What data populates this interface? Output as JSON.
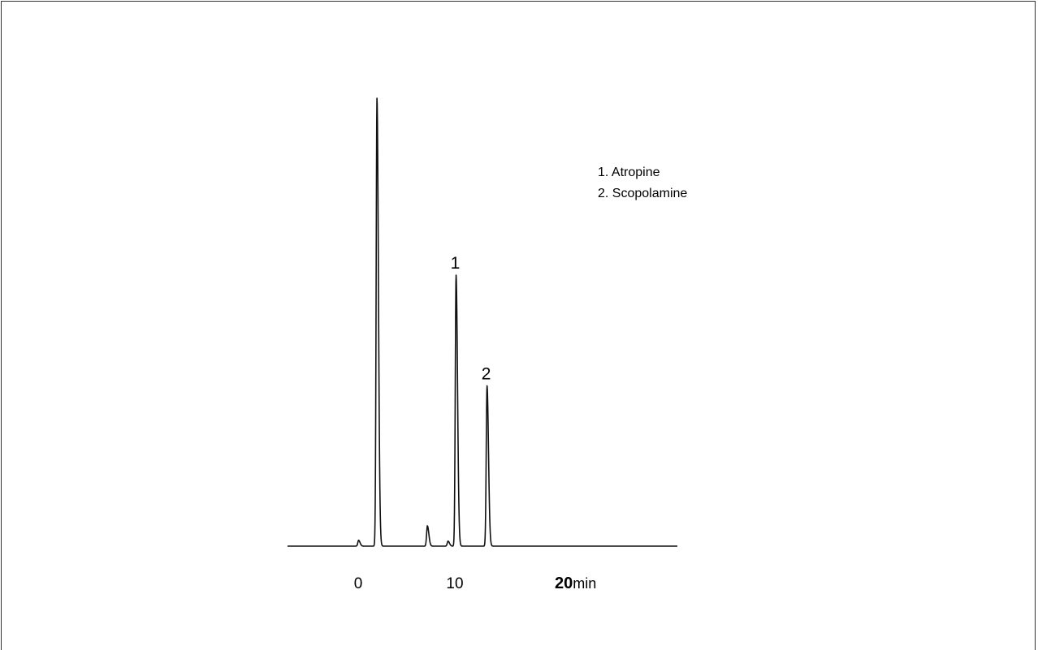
{
  "chart_data": {
    "type": "line",
    "title": "",
    "xlabel": "",
    "ylabel": "",
    "x_unit": "min",
    "xlim": [
      -3.2,
      13.8
    ],
    "ylim": [
      0,
      1
    ],
    "x_ticks": [
      {
        "value": 0,
        "label": "0"
      },
      {
        "value": 10,
        "label": "10"
      },
      {
        "value": 20,
        "label": "20",
        "unit": "min"
      }
    ],
    "legend": {
      "placement": "top-right",
      "entries": [
        "1. Atropine",
        "2. Scopolamine"
      ]
    },
    "peaks": [
      {
        "rt": -0.1,
        "height": 0.013,
        "label": ""
      },
      {
        "rt": 0.7,
        "height": 1.0,
        "label": ""
      },
      {
        "rt": 2.9,
        "height": 0.045,
        "label": ""
      },
      {
        "rt": 3.8,
        "height": 0.011,
        "label": ""
      },
      {
        "rt": 4.15,
        "height": 0.605,
        "label": "1"
      },
      {
        "rt": 5.5,
        "height": 0.358,
        "label": "2"
      }
    ],
    "grid": false
  }
}
